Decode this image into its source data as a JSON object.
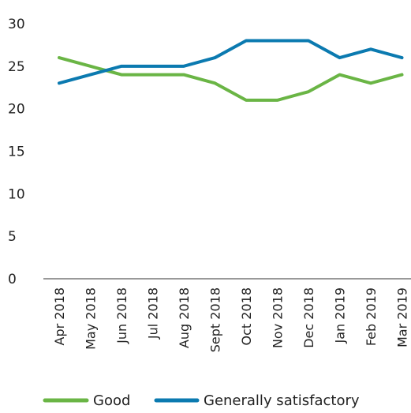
{
  "chart_data": {
    "type": "line",
    "categories": [
      "Apr 2018",
      "May 2018",
      "Jun 2018",
      "Jul 2018",
      "Aug 2018",
      "Sept 2018",
      "Oct 2018",
      "Nov 2018",
      "Dec 2018",
      "Jan 2019",
      "Feb 2019",
      "Mar 2019"
    ],
    "series": [
      {
        "name": "Good",
        "color": "#6ab545",
        "values": [
          26,
          25,
          24,
          24,
          24,
          23,
          21,
          21,
          22,
          24,
          23,
          24
        ]
      },
      {
        "name": "Generally satisfactory",
        "color": "#0b7ab0",
        "values": [
          23,
          24,
          25,
          25,
          25,
          26,
          28,
          28,
          28,
          26,
          27,
          26
        ]
      }
    ],
    "ylim": [
      0,
      30
    ],
    "yticks": [
      0,
      5,
      10,
      15,
      20,
      25,
      30
    ],
    "grid": false,
    "legend": "bottom"
  }
}
